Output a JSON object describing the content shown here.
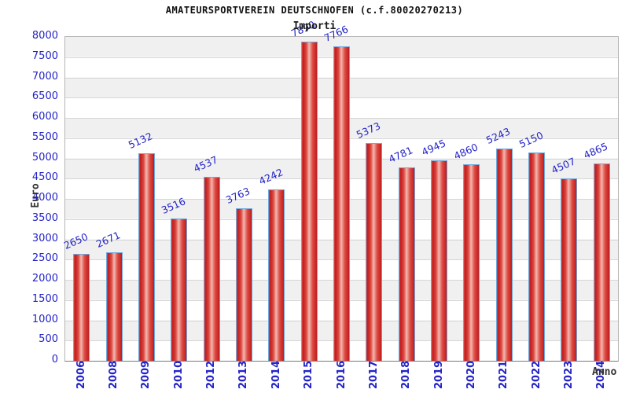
{
  "chart_data": {
    "type": "bar",
    "title": "AMATEURSPORTVEREIN DEUTSCHNOFEN (c.f.80020270213)",
    "subtitle": "Importi",
    "xlabel": "Anno",
    "ylabel": "Euro",
    "categories": [
      "2006",
      "2008",
      "2009",
      "2010",
      "2012",
      "2013",
      "2014",
      "2015",
      "2016",
      "2017",
      "2018",
      "2019",
      "2020",
      "2021",
      "2022",
      "2023",
      "2024"
    ],
    "values": [
      2650,
      2671,
      5132,
      3516,
      4537,
      3763,
      4242,
      7890,
      7766,
      5373,
      4781,
      4945,
      4860,
      5243,
      5150,
      4507,
      4865
    ],
    "ylim": [
      0,
      8000
    ],
    "ytick_step": 500,
    "grid": "horizontal bands alternating gray/white every 500",
    "legend": "none",
    "bar_value_labels_rotated": true,
    "colors": {
      "label_blue": "#2323c8",
      "bar_border": "#6fa8dc",
      "bar_red_dark": "#c01c1c",
      "bar_red_mid": "#dd4a42",
      "bar_red_light": "#f2b8b0",
      "band_gray": "#f0f0f0",
      "band_white": "#ffffff",
      "grid_line": "#d6d6d6",
      "plot_border": "#b5b5b5",
      "title_color": "#111111",
      "axis_word_color": "#333333"
    }
  }
}
